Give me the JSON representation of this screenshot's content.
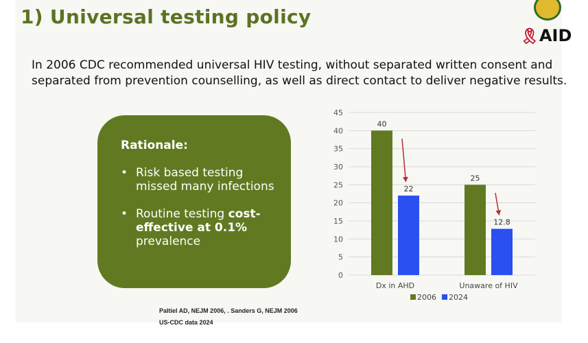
{
  "title": "1) Universal testing policy",
  "logo": {
    "text": "AID",
    "ribbon": "🎗"
  },
  "intro_text": "In 2006 CDC recommended universal HIV testing, without separated written consent and separated from prevention counselling, as well as direct contact to deliver negative results.",
  "rationale": {
    "heading": "Rationale:",
    "bullet_symbol": "•",
    "item1": "Risk based testing missed many infections",
    "item2_plain": "Routine testing ",
    "item2_bold": "cost-effective at 0.1%",
    "item2_end": " prevalence"
  },
  "citations": {
    "line1": "Paltiel AD, NEJM 2006, . Sanders G, NEJM 2006",
    "line2": "US-CDC data 2024"
  },
  "colors": {
    "series_2006": "#617a21",
    "series_2024": "#2b4ff0",
    "arrow": "#b52a3a"
  },
  "chart_data": {
    "type": "bar",
    "categories": [
      "Dx in AHD",
      "Unaware of HIV"
    ],
    "series": [
      {
        "name": "2006",
        "values": [
          40,
          25
        ],
        "labels": [
          "40",
          "25"
        ],
        "color": "#617a21"
      },
      {
        "name": "2024",
        "values": [
          22,
          12.8
        ],
        "labels": [
          "22",
          "12.8"
        ],
        "color": "#2b4ff0"
      }
    ],
    "yticks": [
      0,
      5,
      10,
      15,
      20,
      25,
      30,
      35,
      40,
      45
    ],
    "ylim": [
      0,
      45
    ],
    "grid": true,
    "legend": "bottom",
    "annotations": "downward red arrows from 2006 bar to 2024 bar in each category"
  }
}
